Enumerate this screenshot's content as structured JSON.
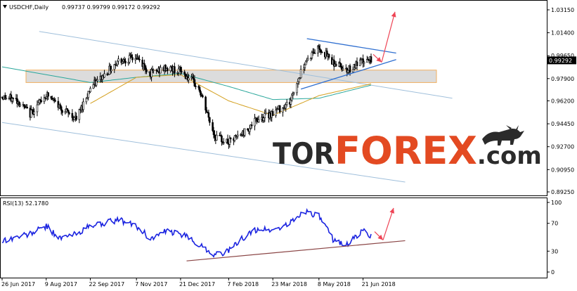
{
  "chart_data": [
    {
      "type": "candlestick",
      "header": {
        "symbol": "USDCHF,Daily",
        "ohlc": "0.99737 0.99799 0.99172 0.99292"
      },
      "current_price_label": "0.99292",
      "y_ticks": [
        "1.03150",
        "1.01400",
        "0.99650",
        "0.97900",
        "0.96200",
        "0.94450",
        "0.92700",
        "0.90950",
        "0.89250"
      ],
      "ylim": [
        0.8925,
        1.0315
      ],
      "approx_close_path": [
        {
          "date": "2017-06-26",
          "close": 0.965
        },
        {
          "date": "2017-07-10",
          "close": 0.963
        },
        {
          "date": "2017-07-24",
          "close": 0.952
        },
        {
          "date": "2017-08-09",
          "close": 0.967
        },
        {
          "date": "2017-08-23",
          "close": 0.957
        },
        {
          "date": "2017-09-08",
          "close": 0.948
        },
        {
          "date": "2017-09-22",
          "close": 0.972
        },
        {
          "date": "2017-10-06",
          "close": 0.982
        },
        {
          "date": "2017-10-20",
          "close": 0.993
        },
        {
          "date": "2017-11-07",
          "close": 0.995
        },
        {
          "date": "2017-11-21",
          "close": 0.983
        },
        {
          "date": "2017-12-06",
          "close": 0.987
        },
        {
          "date": "2017-12-21",
          "close": 0.985
        },
        {
          "date": "2018-01-08",
          "close": 0.972
        },
        {
          "date": "2018-01-24",
          "close": 0.935
        },
        {
          "date": "2018-02-07",
          "close": 0.93
        },
        {
          "date": "2018-02-22",
          "close": 0.938
        },
        {
          "date": "2018-03-08",
          "close": 0.948
        },
        {
          "date": "2018-03-23",
          "close": 0.953
        },
        {
          "date": "2018-04-09",
          "close": 0.961
        },
        {
          "date": "2018-04-24",
          "close": 0.992
        },
        {
          "date": "2018-05-08",
          "close": 1.003
        },
        {
          "date": "2018-05-23",
          "close": 0.991
        },
        {
          "date": "2018-06-06",
          "close": 0.986
        },
        {
          "date": "2018-06-21",
          "close": 0.992
        },
        {
          "date": "2018-06-29",
          "close": 0.99292
        }
      ],
      "moving_average_1": [
        {
          "date": "2017-06-26",
          "value": 0.988
        },
        {
          "date": "2017-09-22",
          "value": 0.976
        },
        {
          "date": "2017-11-07",
          "value": 0.98
        },
        {
          "date": "2017-12-21",
          "value": 0.983
        },
        {
          "date": "2018-02-07",
          "value": 0.973
        },
        {
          "date": "2018-03-23",
          "value": 0.963
        },
        {
          "date": "2018-05-08",
          "value": 0.964
        },
        {
          "date": "2018-06-29",
          "value": 0.974
        }
      ],
      "moving_average_2": [
        {
          "date": "2017-09-22",
          "value": 0.96
        },
        {
          "date": "2017-11-07",
          "value": 0.98
        },
        {
          "date": "2017-12-21",
          "value": 0.982
        },
        {
          "date": "2018-02-07",
          "value": 0.962
        },
        {
          "date": "2018-03-23",
          "value": 0.951
        },
        {
          "date": "2018-05-08",
          "value": 0.966
        },
        {
          "date": "2018-06-29",
          "value": 0.975
        }
      ],
      "colors": {
        "bull": "#ffffff",
        "bear": "#000000",
        "ma1": "#2aa79b",
        "ma2": "#d4a020",
        "channel": "#9fbfdb",
        "trend": "#2f6fd0",
        "arrow": "#ee4455",
        "zone_fill": "#dcdcdc",
        "zone_border": "#f0b060"
      },
      "watermark": "TORFOREX.com"
    },
    {
      "type": "line",
      "header": "RSI(13) 52.1780",
      "y_ticks": [
        "100",
        "70",
        "30",
        "0"
      ],
      "ylim": [
        0,
        100
      ],
      "approx_values": [
        {
          "date": "2017-06-26",
          "value": 45
        },
        {
          "date": "2017-07-24",
          "value": 55
        },
        {
          "date": "2017-08-09",
          "value": 66
        },
        {
          "date": "2017-08-23",
          "value": 48
        },
        {
          "date": "2017-09-08",
          "value": 55
        },
        {
          "date": "2017-09-22",
          "value": 66
        },
        {
          "date": "2017-10-20",
          "value": 75
        },
        {
          "date": "2017-11-07",
          "value": 66
        },
        {
          "date": "2017-11-21",
          "value": 48
        },
        {
          "date": "2017-12-06",
          "value": 58
        },
        {
          "date": "2017-12-21",
          "value": 55
        },
        {
          "date": "2018-01-08",
          "value": 40
        },
        {
          "date": "2018-01-24",
          "value": 25
        },
        {
          "date": "2018-02-07",
          "value": 30
        },
        {
          "date": "2018-02-22",
          "value": 50
        },
        {
          "date": "2018-03-08",
          "value": 62
        },
        {
          "date": "2018-03-23",
          "value": 60
        },
        {
          "date": "2018-04-09",
          "value": 70
        },
        {
          "date": "2018-04-24",
          "value": 88
        },
        {
          "date": "2018-05-08",
          "value": 80
        },
        {
          "date": "2018-05-23",
          "value": 45
        },
        {
          "date": "2018-06-06",
          "value": 40
        },
        {
          "date": "2018-06-21",
          "value": 60
        },
        {
          "date": "2018-06-29",
          "value": 52.178
        }
      ]
    }
  ],
  "x_ticks": [
    "26 Jun 2017",
    "9 Aug 2017",
    "22 Sep 2017",
    "7 Nov 2017",
    "21 Dec 2017",
    "7 Feb 2018",
    "23 Mar 2018",
    "8 May 2018",
    "21 Jun 2018"
  ],
  "x_tick_dates": [
    "2017-06-26",
    "2017-08-09",
    "2017-09-22",
    "2017-11-07",
    "2017-12-21",
    "2018-02-07",
    "2018-03-23",
    "2018-05-08",
    "2018-06-21"
  ],
  "x_end_date": "2018-06-29",
  "watermark_parts": {
    "a": "TOR",
    "b": "FOREX",
    "c": ".com"
  }
}
